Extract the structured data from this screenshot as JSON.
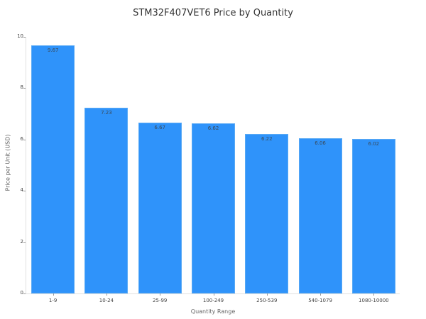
{
  "chart_data": {
    "type": "bar",
    "title": "STM32F407VET6 Price by Quantity",
    "xlabel": "Quantity Range",
    "ylabel": "Price per Unit (USD)",
    "categories": [
      "1-9",
      "10-24",
      "25-99",
      "100-249",
      "250-539",
      "540-1079",
      "1080-10000"
    ],
    "values": [
      9.67,
      7.23,
      6.67,
      6.62,
      6.22,
      6.06,
      6.02
    ],
    "value_labels": [
      "9.67",
      "7.23",
      "6.67",
      "6.62",
      "6.22",
      "6.06",
      "6.02"
    ],
    "ylim": [
      0,
      10
    ],
    "yticks": [
      "0",
      "2",
      "4",
      "6",
      "8",
      "10"
    ],
    "grid": false,
    "legend": null,
    "bar_color": "#2f93fa"
  }
}
